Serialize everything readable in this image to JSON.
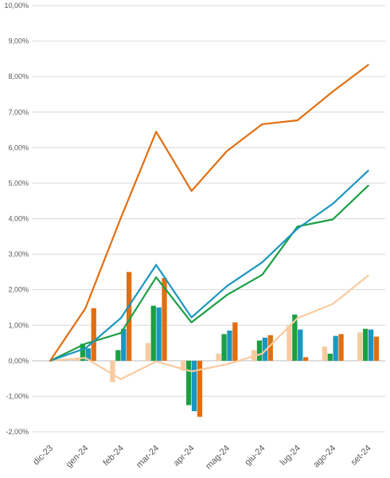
{
  "chart_data": {
    "type": "bar+line",
    "categories": [
      "dic-23",
      "gen-24",
      "feb-24",
      "mar-24",
      "apr-24",
      "mag-24",
      "giu-24",
      "lug-24",
      "ago-24",
      "set-24"
    ],
    "y_tick_labels": [
      "-2,00%",
      "-1,00%",
      "0,00%",
      "1,00%",
      "2,00%",
      "3,00%",
      "4,00%",
      "5,00%",
      "6,00%",
      "7,00%",
      "8,00%",
      "9,00%",
      "10,00%"
    ],
    "ylim": [
      -2,
      10
    ],
    "y_unit": "%",
    "grid": true,
    "legend": "none",
    "bar_series": [
      {
        "color": "#F8CBA0",
        "values": [
          0,
          0.08,
          -0.6,
          0.5,
          -0.28,
          0.2,
          0.3,
          1.0,
          0.4,
          0.8
        ]
      },
      {
        "color": "#1AA043",
        "values": [
          0,
          0.48,
          0.3,
          1.55,
          -1.25,
          0.75,
          0.57,
          1.3,
          0.2,
          0.9
        ]
      },
      {
        "color": "#1B96C0",
        "values": [
          0,
          0.35,
          0.9,
          1.5,
          -1.42,
          0.85,
          0.65,
          0.88,
          0.7,
          0.88
        ]
      },
      {
        "color": "#E26E10",
        "values": [
          0,
          1.48,
          2.5,
          2.33,
          -1.58,
          1.08,
          0.72,
          0.1,
          0.75,
          0.68
        ]
      }
    ],
    "line_series": [
      {
        "color": "#F8CBA0",
        "values": [
          0,
          0.08,
          -0.52,
          -0.02,
          -0.3,
          -0.1,
          0.2,
          1.2,
          1.6,
          2.4
        ]
      },
      {
        "color": "#1AA043",
        "values": [
          0,
          0.48,
          0.78,
          2.35,
          1.08,
          1.85,
          2.42,
          3.78,
          3.98,
          4.93
        ]
      },
      {
        "color": "#1B96C0",
        "values": [
          0,
          0.35,
          1.2,
          2.7,
          1.22,
          2.1,
          2.77,
          3.72,
          4.42,
          5.35
        ]
      },
      {
        "color": "#E26E10",
        "values": [
          0,
          1.48,
          4.02,
          6.45,
          4.78,
          5.9,
          6.66,
          6.77,
          7.58,
          8.33
        ]
      }
    ]
  }
}
